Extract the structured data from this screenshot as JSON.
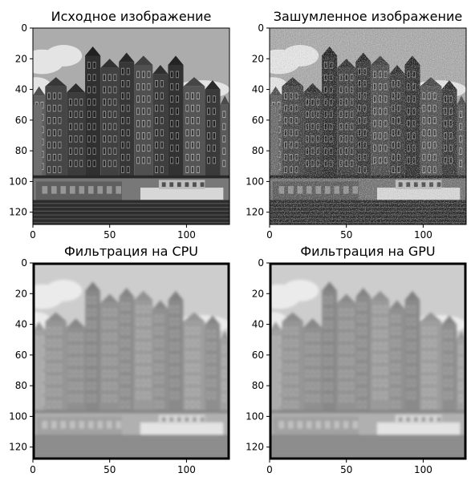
{
  "chart_data": [
    {
      "type": "image",
      "title": "Исходное изображение",
      "colormap": "gray",
      "variant": "original",
      "xlim": [
        0,
        127
      ],
      "ylim": [
        127,
        0
      ],
      "xticks": [
        0,
        50,
        100
      ],
      "yticks": [
        0,
        20,
        40,
        60,
        80,
        100,
        120
      ],
      "grid": false
    },
    {
      "type": "image",
      "title": "Зашумленное изображение",
      "colormap": "gray",
      "variant": "noisy",
      "xlim": [
        0,
        127
      ],
      "ylim": [
        127,
        0
      ],
      "xticks": [
        0,
        50,
        100
      ],
      "yticks": [
        0,
        20,
        40,
        60,
        80,
        100,
        120
      ],
      "grid": false
    },
    {
      "type": "image",
      "title": "Фильтрация на CPU",
      "colormap": "gray",
      "variant": "filtered",
      "xlim": [
        0,
        127
      ],
      "ylim": [
        127,
        0
      ],
      "xticks": [
        0,
        50,
        100
      ],
      "yticks": [
        0,
        20,
        40,
        60,
        80,
        100,
        120
      ],
      "grid": false
    },
    {
      "type": "image",
      "title": "Фильтрация на GPU",
      "colormap": "gray",
      "variant": "filtered",
      "xlim": [
        0,
        127
      ],
      "ylim": [
        127,
        0
      ],
      "xticks": [
        0,
        50,
        100
      ],
      "yticks": [
        0,
        20,
        40,
        60,
        80,
        100,
        120
      ],
      "grid": false
    }
  ]
}
